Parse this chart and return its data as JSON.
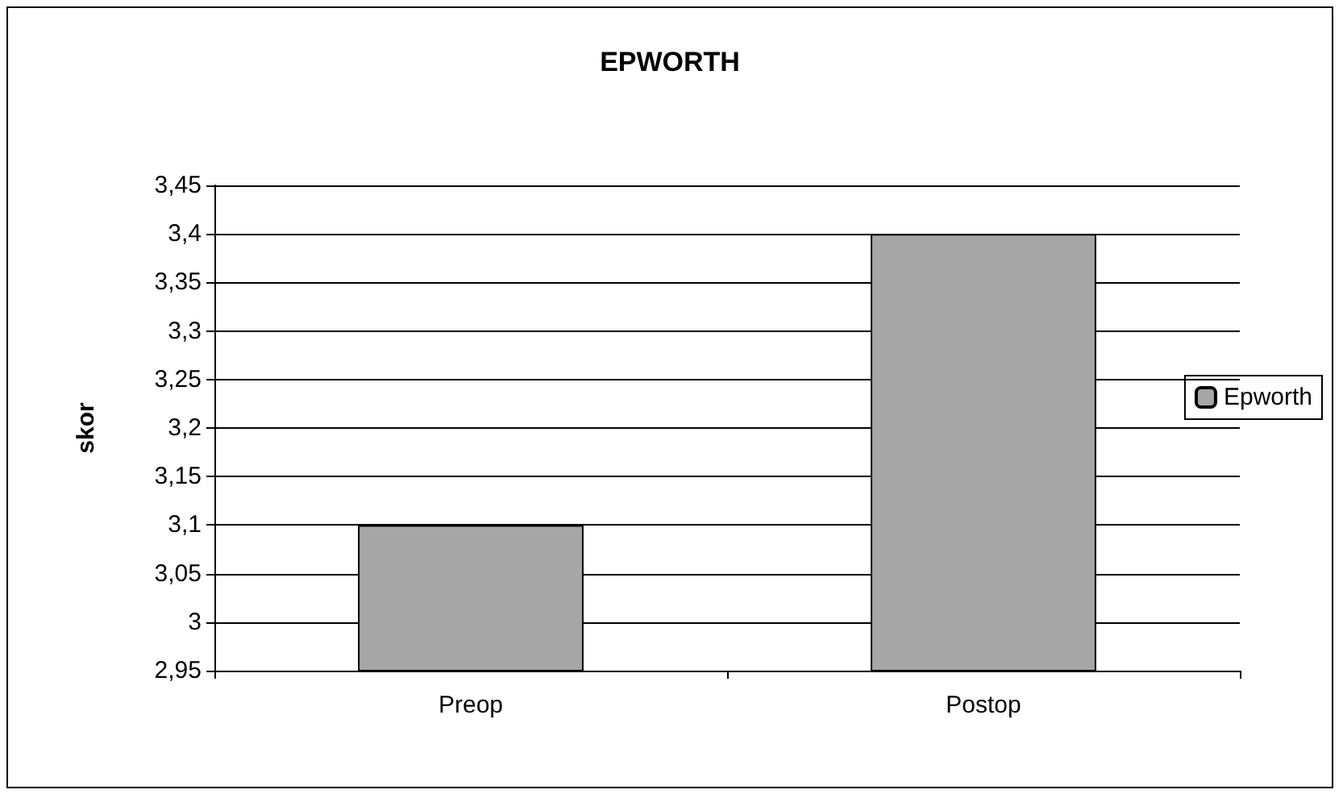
{
  "chart_data": {
    "type": "bar",
    "title": "EPWORTH",
    "ylabel": "skor",
    "categories": [
      "Preop",
      "Postop"
    ],
    "series": [
      {
        "name": "Epworth",
        "color": "#a6a6a6",
        "values": [
          3.1,
          3.4
        ]
      }
    ],
    "ylim": [
      2.95,
      3.45
    ],
    "yticks": [
      {
        "value": 2.95,
        "label": "2,95"
      },
      3,
      {
        "value": 3.05,
        "label": "3,05"
      },
      {
        "value": 3.1,
        "label": "3,1"
      },
      {
        "value": 3.15,
        "label": "3,15"
      },
      {
        "value": 3.2,
        "label": "3,2"
      },
      {
        "value": 3.25,
        "label": "3,25"
      },
      {
        "value": 3.3,
        "label": "3,3"
      },
      {
        "value": 3.35,
        "label": "3,35"
      },
      {
        "value": 3.4,
        "label": "3,4"
      },
      {
        "value": 3.45,
        "label": "3,45"
      }
    ],
    "grid": "y",
    "legend": "right"
  }
}
